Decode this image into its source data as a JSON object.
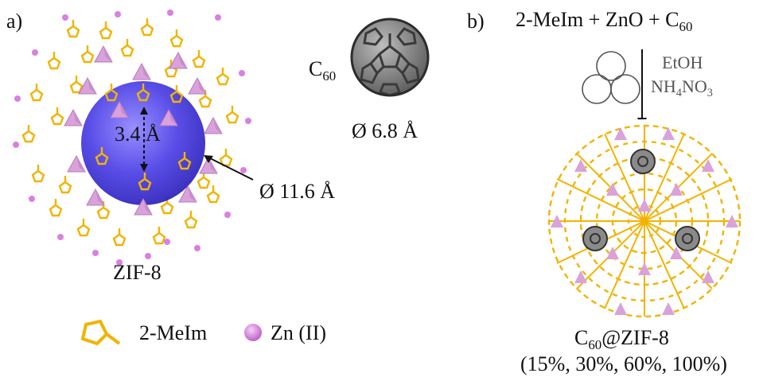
{
  "panel_a": {
    "label": "a)",
    "pore_height_text": "3.4 Å",
    "pore_diameter_text": "Ø 11.6 Å",
    "framework_label": "ZIF-8",
    "c60": {
      "name": "C",
      "name_sub": "60",
      "diameter_text": "Ø 6.8 Å"
    }
  },
  "legend": {
    "ligand_label": "2-MeIm",
    "zinc_label": "Zn (II)"
  },
  "panel_b": {
    "label": "b)",
    "reactants": {
      "text": "2-MeIm + ZnO + C",
      "sub": "60"
    },
    "conditions": {
      "solvent": "EtOH",
      "salt_parts": [
        "NH",
        "4",
        "NO",
        "3"
      ]
    },
    "product": {
      "c": "C",
      "c_sub": "60",
      "rest": "@ZIF-8"
    },
    "loadings": "(15%, 30%, 60%, 100%)"
  },
  "colors": {
    "ligand": "#f2b300",
    "zinc_tetrahedra": "#d9a2db",
    "zinc_atom": "#d980e0",
    "pore": "#4a3ee0",
    "fullerene": "#7a7a7a"
  },
  "icons": [
    "ball-mill-icon",
    "fullerene-icon",
    "ligand-icon",
    "zinc-atom-icon"
  ]
}
